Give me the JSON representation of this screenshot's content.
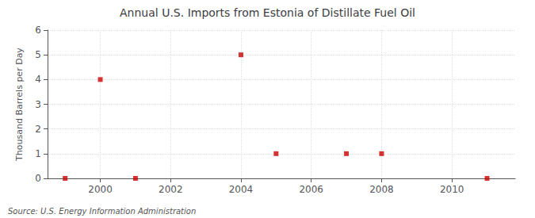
{
  "chart_data": {
    "type": "scatter",
    "title": "Annual U.S. Imports from Estonia of Distillate Fuel Oil",
    "ylabel": "Thousand Barrels per Day",
    "annotations": [
      "Source: U.S. Energy Information Administration"
    ],
    "x": [
      1999,
      2000,
      2001,
      2004,
      2005,
      2007,
      2008,
      2011
    ],
    "values": [
      0,
      4,
      0,
      5,
      1,
      1,
      1,
      0
    ],
    "color": "#cc0000",
    "marker": "square",
    "xlim": [
      1998.5,
      2011.8
    ],
    "xticks": [
      2000,
      2002,
      2004,
      2006,
      2008,
      2010
    ],
    "ylim": [
      0,
      6
    ],
    "yticks": [
      0,
      1,
      2,
      3,
      4,
      5,
      6
    ],
    "grid": true
  }
}
